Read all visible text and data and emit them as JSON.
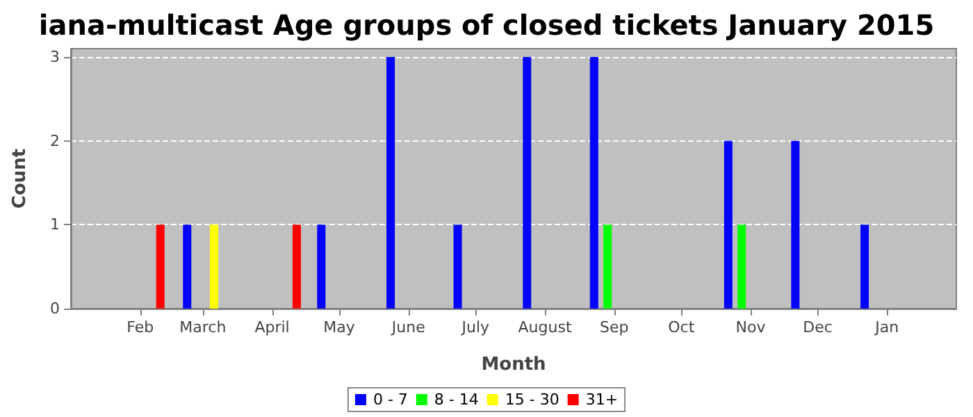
{
  "chart_data": {
    "type": "bar",
    "title": "iana-multicast Age groups of closed tickets January 2015",
    "xlabel": "Month",
    "ylabel": "Count",
    "series": [
      {
        "name": "0 - 7",
        "color": "#0000ff",
        "x": [
          "2014-02-22",
          "2014-04-23",
          "2014-05-24",
          "2014-06-23",
          "2014-07-24",
          "2014-08-23",
          "2014-10-22",
          "2014-11-21",
          "2014-12-22"
        ],
        "values": [
          1,
          1,
          3,
          1,
          3,
          3,
          2,
          2,
          1
        ]
      },
      {
        "name": "8 - 14",
        "color": "#00ff00",
        "x": [
          "2014-08-29",
          "2014-10-28"
        ],
        "values": [
          1,
          1
        ]
      },
      {
        "name": "15 - 30",
        "color": "#ffff00",
        "x": [
          "2014-03-06"
        ],
        "values": [
          1
        ]
      },
      {
        "name": "31+",
        "color": "#ff0000",
        "x": [
          "2014-02-10",
          "2014-04-12"
        ],
        "values": [
          1,
          1
        ]
      }
    ],
    "xlim": [
      "2014-01-01",
      "2015-02-01"
    ],
    "xticks": [
      {
        "value": "2014-02-01",
        "label": "Feb"
      },
      {
        "value": "2014-03-01",
        "label": "March"
      },
      {
        "value": "2014-04-01",
        "label": "April"
      },
      {
        "value": "2014-05-01",
        "label": "May"
      },
      {
        "value": "2014-06-01",
        "label": "June"
      },
      {
        "value": "2014-07-01",
        "label": "July"
      },
      {
        "value": "2014-08-01",
        "label": "August"
      },
      {
        "value": "2014-09-01",
        "label": "Sep"
      },
      {
        "value": "2014-10-01",
        "label": "Oct"
      },
      {
        "value": "2014-11-01",
        "label": "Nov"
      },
      {
        "value": "2014-12-01",
        "label": "Dec"
      },
      {
        "value": "2015-01-01",
        "label": "Jan"
      }
    ],
    "ylim": [
      0,
      3.1
    ],
    "yticks": [
      0,
      1,
      2,
      3
    ],
    "grid": "y",
    "legend": "bottom"
  }
}
